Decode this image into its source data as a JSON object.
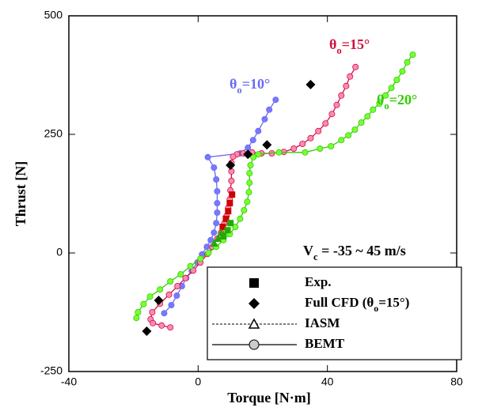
{
  "chart_data": {
    "type": "scatter",
    "xlabel": "Torque [N·m]",
    "ylabel": "Thrust [N]",
    "xlim": [
      -40,
      80
    ],
    "xticks": [
      -40,
      0,
      40,
      80
    ],
    "ylim": [
      -250,
      500
    ],
    "yticks": [
      -250,
      0,
      250,
      500
    ],
    "condition": {
      "text": "V",
      "sub": "c",
      "rest": " = -35 ~ 45 m/s"
    },
    "series": [
      {
        "label": {
          "text": "θ",
          "sub": "o",
          "rest": "=10°"
        },
        "color": "#6a6af0",
        "marker_color": "#7878ff",
        "x": [
          24,
          22,
          20.6,
          18.6,
          17,
          15.4,
          13,
          3,
          4.9,
          5.6,
          5.9,
          5.9,
          5.9,
          5.6,
          4.9,
          3.9,
          2.7,
          1.2,
          -0.2,
          -2,
          -3.7,
          -5,
          -6.6,
          -8.3,
          -10.5
        ],
        "values": [
          323,
          302,
          282,
          257,
          238,
          222,
          210,
          202,
          180,
          155,
          130,
          105,
          85,
          63,
          43,
          27,
          13,
          -3,
          -20,
          -37,
          -53,
          -70,
          -90,
          -110,
          -127
        ]
      },
      {
        "label": {
          "text": "θ",
          "sub": "o",
          "rest": "=15°"
        },
        "color": "#d0103c",
        "marker_color": "#ff88b8",
        "x": [
          48.7,
          47,
          45.8,
          44.3,
          42.9,
          41.4,
          39.4,
          37.2,
          34.8,
          32.3,
          29.6,
          26.5,
          22.8,
          19.6,
          16.7,
          14,
          12,
          10.8,
          10.3,
          10.3,
          10.3,
          10,
          9.8,
          9.3,
          8.8,
          8.1,
          7.1,
          5.9,
          4.4,
          2.9,
          0.7,
          -1.5,
          -3.9,
          -6.4,
          -9,
          -11.8,
          -14.2,
          -14.7,
          -14,
          -11.3,
          -8.6
        ],
        "values": [
          392,
          372,
          352,
          332,
          312,
          293,
          273,
          257,
          242,
          230,
          220,
          213,
          210,
          210,
          212,
          210,
          208,
          203,
          190,
          172,
          152,
          132,
          113,
          95,
          78,
          62,
          43,
          30,
          13,
          -2,
          -20,
          -37,
          -53,
          -70,
          -88,
          -107,
          -125,
          -140,
          -148,
          -153,
          -157
        ]
      },
      {
        "label": {
          "text": "θ",
          "sub": "o",
          "rest": "=20°"
        },
        "color": "#33cc00",
        "marker_color": "#77ff33",
        "x": [
          66.4,
          64.7,
          63.2,
          61.5,
          59.8,
          58,
          56.1,
          54.1,
          52.4,
          50.5,
          48.5,
          46.5,
          44.3,
          41.1,
          37.7,
          33.1,
          25,
          18.6,
          17.1,
          16.2,
          15.9,
          15.9,
          15.7,
          15.2,
          14.2,
          13,
          11.5,
          9.8,
          7.8,
          5.6,
          3.2,
          0.7,
          -2.4,
          -5.4,
          -8.6,
          -11.8,
          -14.9,
          -16.9,
          -18.6,
          -19.1
        ],
        "values": [
          418,
          402,
          383,
          365,
          348,
          332,
          315,
          302,
          288,
          275,
          260,
          248,
          238,
          225,
          220,
          212,
          212,
          208,
          202,
          185,
          168,
          148,
          128,
          108,
          90,
          72,
          55,
          40,
          27,
          13,
          0,
          -12,
          -28,
          -45,
          -60,
          -77,
          -92,
          -108,
          -125,
          -137
        ]
      }
    ],
    "exp": [
      {
        "color": "#cc0000",
        "x": [
          10.5,
          9.8,
          9.3,
          8.6,
          7.6
        ],
        "values": [
          123,
          105,
          88,
          72,
          55
        ]
      },
      {
        "color": "#22aa00",
        "x": [
          10,
          9.1,
          7.8
        ],
        "values": [
          63,
          48,
          35
        ]
      }
    ],
    "cfd": {
      "x": [
        34.8,
        21.3,
        15.4,
        10,
        -12.2,
        -15.9
      ],
      "values": [
        355,
        228,
        208,
        185,
        -100,
        -165
      ]
    },
    "iasm": {
      "color": "#22aa00",
      "x": [
        7.1,
        6.1,
        5
      ],
      "values": [
        43,
        30,
        20
      ]
    },
    "legend": [
      {
        "label": {
          "text": "Exp."
        },
        "marker": "square"
      },
      {
        "label": {
          "text": "Full CFD (θ",
          "sub": "o",
          "rest": "=15°)"
        },
        "marker": "diamond"
      },
      {
        "label": {
          "text": "IASM"
        },
        "marker": "triangle"
      },
      {
        "label": {
          "text": "BEMT"
        },
        "marker": "circle"
      }
    ]
  }
}
